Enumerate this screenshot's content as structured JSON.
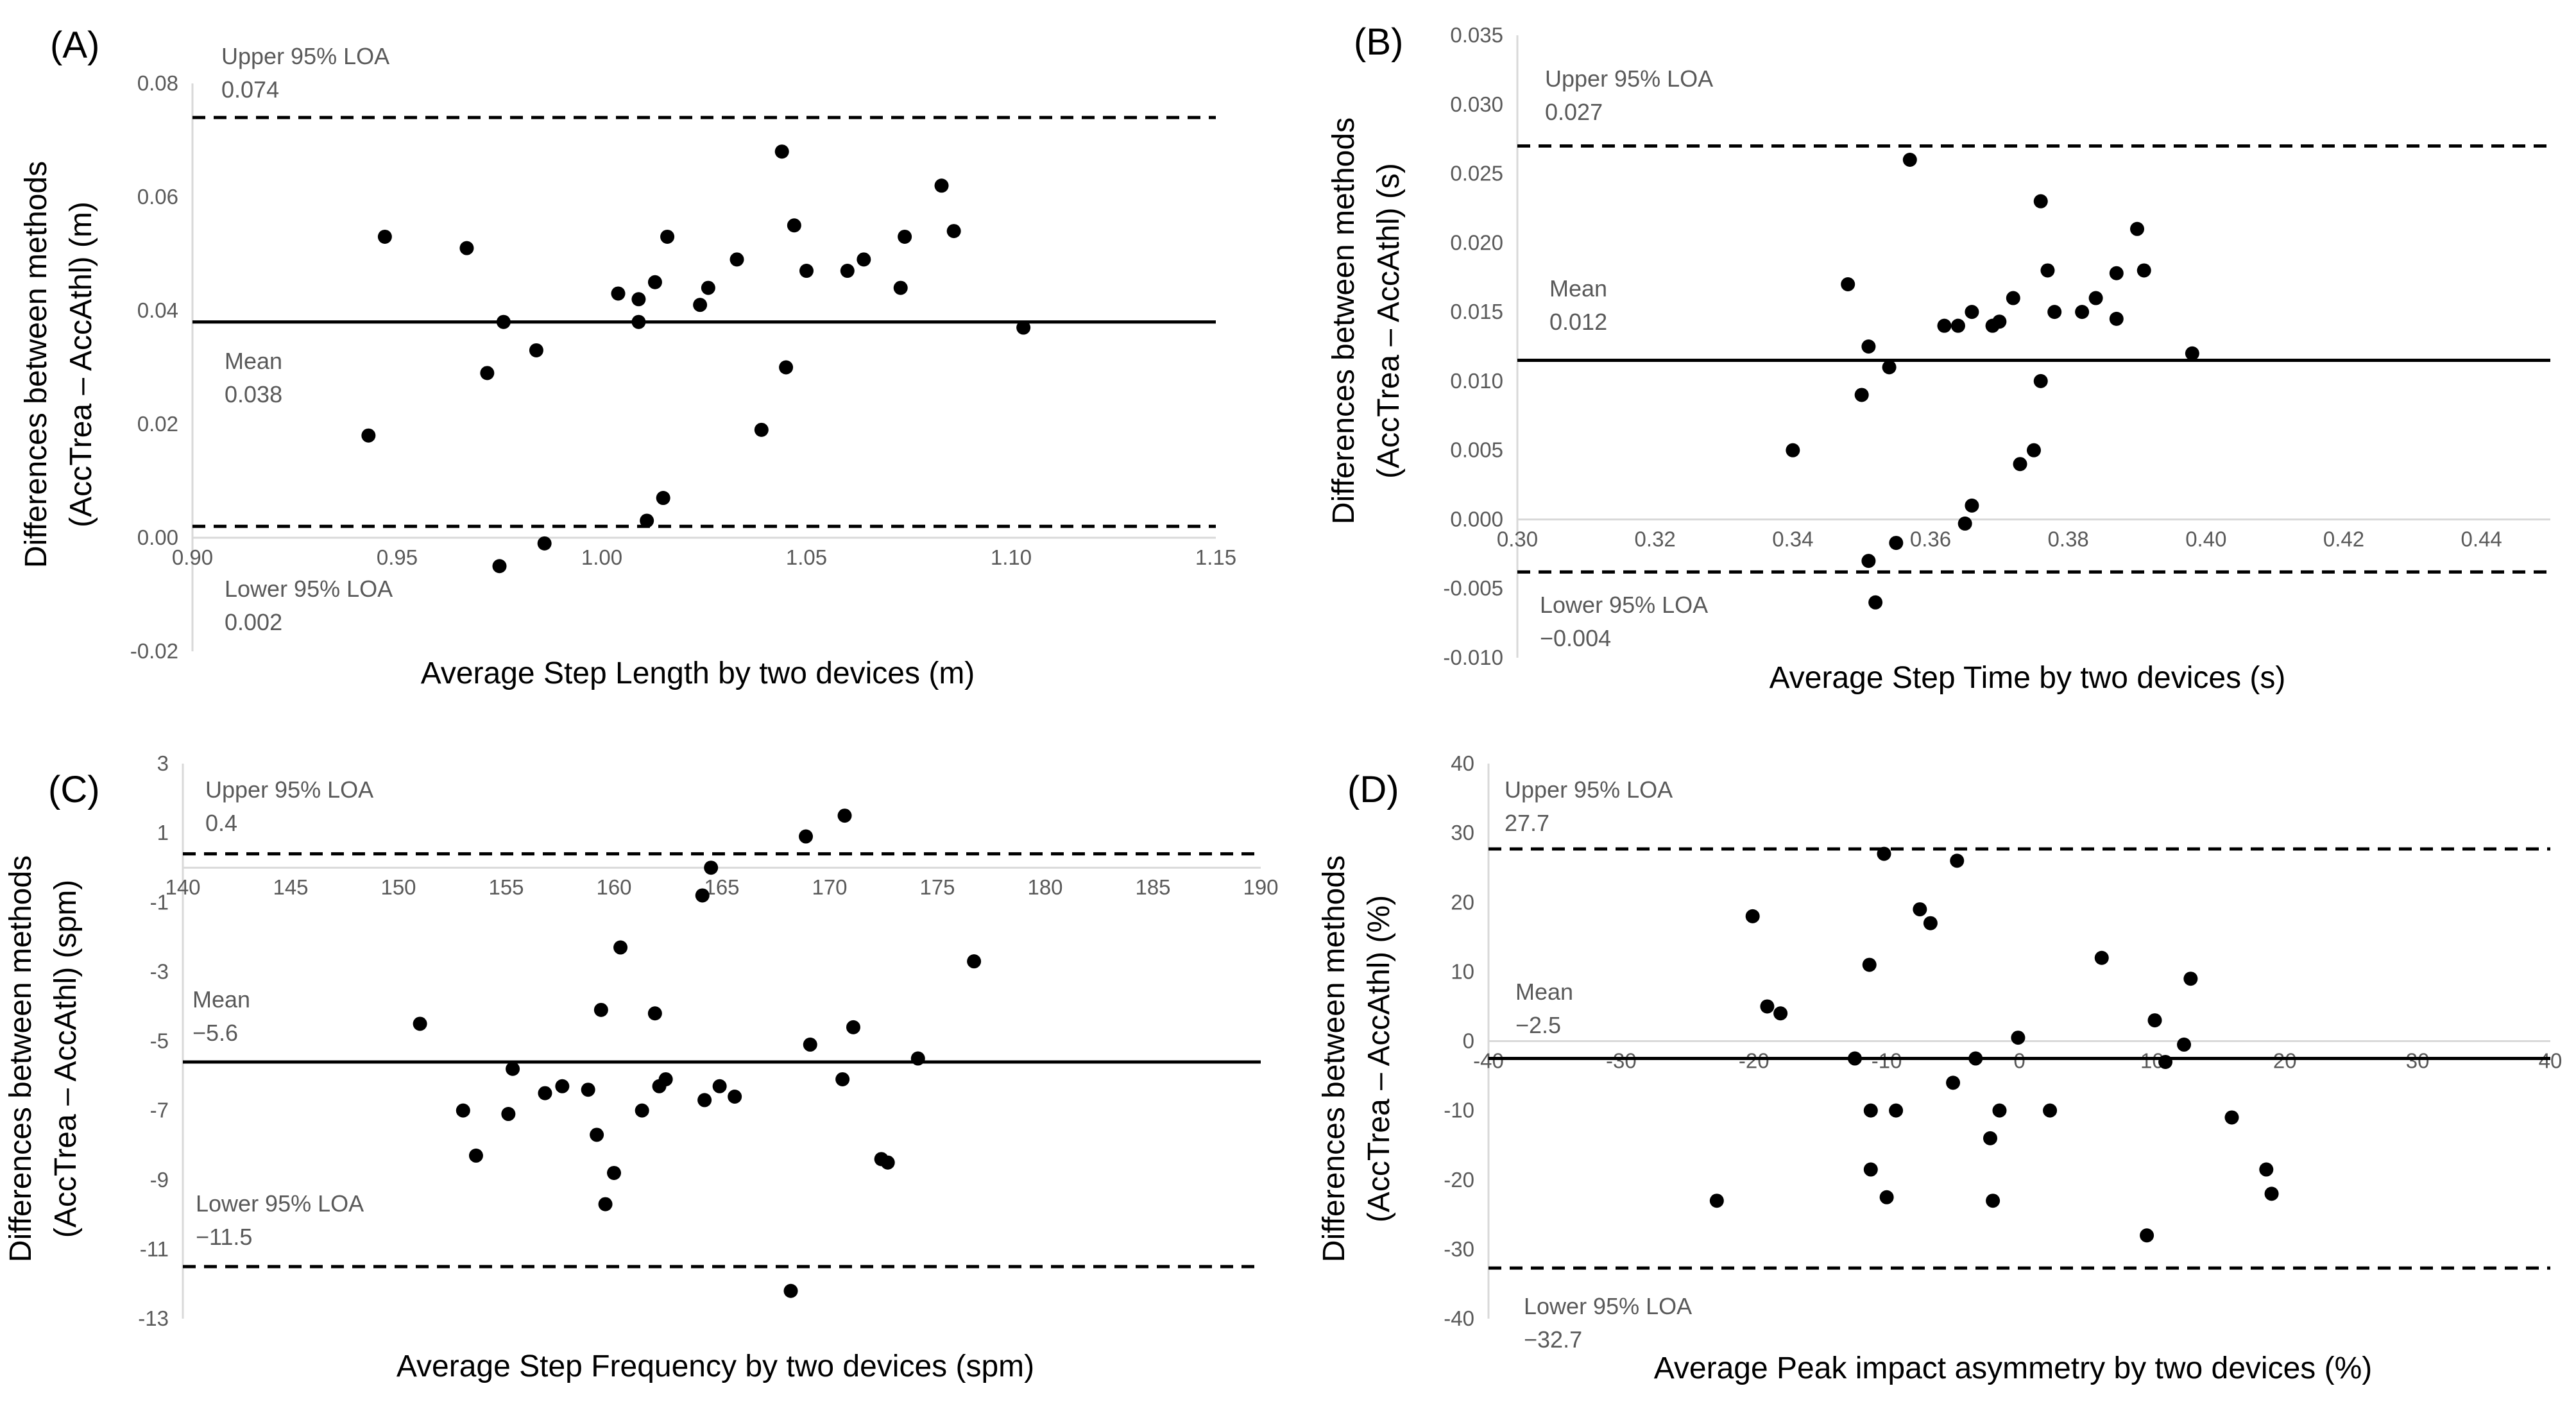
{
  "chart_data": [
    {
      "type": "scatter",
      "panel_label": "(A)",
      "title": "",
      "xlabel": "Average Step Length by two devices (m)",
      "ylabel_line1": "Differences between methods",
      "ylabel_line2": "(AccTrea – AccAthl) (m)",
      "xlim": [
        0.9,
        1.15
      ],
      "ylim": [
        -0.02,
        0.08
      ],
      "xticks": [
        "0.90",
        "0.95",
        "1.00",
        "1.05",
        "1.10",
        "1.15"
      ],
      "yticks": [
        "-0.02",
        "0.00",
        "0.02",
        "0.04",
        "0.06",
        "0.08"
      ],
      "lines": {
        "upper": {
          "label": "Upper 95% LOA",
          "value_text": "0.074",
          "value": 0.074
        },
        "mean": {
          "label": "Mean",
          "value_text": "0.038",
          "value": 0.038
        },
        "lower": {
          "label": "Lower 95% LOA",
          "value_text": "0.002",
          "value": 0.002
        }
      },
      "points": [
        [
          0.943,
          0.018
        ],
        [
          0.947,
          0.053
        ],
        [
          0.967,
          0.051
        ],
        [
          0.972,
          0.029
        ],
        [
          0.975,
          -0.005
        ],
        [
          0.976,
          0.038
        ],
        [
          0.984,
          0.033
        ],
        [
          0.986,
          -0.001
        ],
        [
          1.004,
          0.043
        ],
        [
          1.009,
          0.038
        ],
        [
          1.009,
          0.042
        ],
        [
          1.011,
          0.003
        ],
        [
          1.013,
          0.045
        ],
        [
          1.015,
          0.007
        ],
        [
          1.016,
          0.053
        ],
        [
          1.024,
          0.041
        ],
        [
          1.026,
          0.044
        ],
        [
          1.033,
          0.049
        ],
        [
          1.039,
          0.019
        ],
        [
          1.044,
          0.068
        ],
        [
          1.045,
          0.03
        ],
        [
          1.047,
          0.055
        ],
        [
          1.05,
          0.047
        ],
        [
          1.06,
          0.047
        ],
        [
          1.064,
          0.049
        ],
        [
          1.073,
          0.044
        ],
        [
          1.074,
          0.053
        ],
        [
          1.083,
          0.062
        ],
        [
          1.086,
          0.054
        ],
        [
          1.103,
          0.037
        ]
      ]
    },
    {
      "type": "scatter",
      "panel_label": "(B)",
      "title": "",
      "xlabel": "Average Step Time by two devices (s)",
      "ylabel_line1": "Differences between methods",
      "ylabel_line2": "(AccTrea – AccAthl) (s)",
      "xlim": [
        0.3,
        0.45
      ],
      "ylim": [
        -0.01,
        0.035
      ],
      "xticks": [
        "0.30",
        "0.32",
        "0.34",
        "0.36",
        "0.38",
        "0.40",
        "0.42",
        "0.44"
      ],
      "yticks": [
        "-0.010",
        "-0.005",
        "0.000",
        "0.005",
        "0.010",
        "0.015",
        "0.020",
        "0.025",
        "0.030",
        "0.035"
      ],
      "lines": {
        "upper": {
          "label": "Upper 95% LOA",
          "value_text": "0.027",
          "value": 0.027
        },
        "mean": {
          "label": "Mean",
          "value_text": "0.012",
          "value": 0.0115
        },
        "lower": {
          "label": "Lower 95% LOA",
          "value_text": "−0.004",
          "value": -0.0038
        }
      },
      "points": [
        [
          0.34,
          0.005
        ],
        [
          0.348,
          0.017
        ],
        [
          0.35,
          0.009
        ],
        [
          0.351,
          0.0125
        ],
        [
          0.351,
          -0.003
        ],
        [
          0.352,
          -0.006
        ],
        [
          0.354,
          0.011
        ],
        [
          0.355,
          -0.0017
        ],
        [
          0.357,
          0.026
        ],
        [
          0.362,
          0.014
        ],
        [
          0.364,
          0.014
        ],
        [
          0.365,
          -0.0003
        ],
        [
          0.366,
          0.015
        ],
        [
          0.366,
          0.001
        ],
        [
          0.369,
          0.014
        ],
        [
          0.37,
          0.0143
        ],
        [
          0.372,
          0.016
        ],
        [
          0.373,
          0.004
        ],
        [
          0.375,
          0.005
        ],
        [
          0.376,
          0.023
        ],
        [
          0.376,
          0.01
        ],
        [
          0.377,
          0.018
        ],
        [
          0.378,
          0.015
        ],
        [
          0.382,
          0.015
        ],
        [
          0.384,
          0.016
        ],
        [
          0.387,
          0.0178
        ],
        [
          0.387,
          0.0145
        ],
        [
          0.39,
          0.021
        ],
        [
          0.391,
          0.018
        ],
        [
          0.398,
          0.012
        ]
      ]
    },
    {
      "type": "scatter",
      "panel_label": "(C)",
      "title": "",
      "xlabel": "Average Step Frequency by two devices (spm)",
      "ylabel_line1": "Differences between methods",
      "ylabel_line2": "(AccTrea – AccAthl) (spm)",
      "xlim": [
        140,
        190
      ],
      "ylim": [
        -13,
        3
      ],
      "xticks": [
        "140",
        "145",
        "150",
        "155",
        "160",
        "165",
        "170",
        "175",
        "180",
        "185",
        "190"
      ],
      "yticks": [
        "-13",
        "-11",
        "-9",
        "-7",
        "-5",
        "-3",
        "-1",
        "1",
        "3"
      ],
      "lines": {
        "upper": {
          "label": "Upper 95% LOA",
          "value_text": "0.4",
          "value": 0.4
        },
        "mean": {
          "label": "Mean",
          "value_text": "−5.6",
          "value": -5.6
        },
        "lower": {
          "label": "Lower 95% LOA",
          "value_text": "−11.5",
          "value": -11.5
        }
      },
      "points": [
        [
          151,
          -4.5
        ],
        [
          153,
          -7.0
        ],
        [
          153.6,
          -8.3
        ],
        [
          155.1,
          -7.1
        ],
        [
          155.3,
          -5.8
        ],
        [
          156.8,
          -6.5
        ],
        [
          157.6,
          -6.3
        ],
        [
          158.8,
          -6.4
        ],
        [
          159.2,
          -7.7
        ],
        [
          159.4,
          -4.1
        ],
        [
          159.6,
          -9.7
        ],
        [
          160.0,
          -8.8
        ],
        [
          160.3,
          -2.3
        ],
        [
          161.3,
          -7.0
        ],
        [
          161.9,
          -4.2
        ],
        [
          162.1,
          -6.3
        ],
        [
          162.4,
          -6.1
        ],
        [
          164.1,
          -0.8
        ],
        [
          164.2,
          -6.7
        ],
        [
          164.5,
          0.0
        ],
        [
          164.9,
          -6.3
        ],
        [
          165.6,
          -6.6
        ],
        [
          168.2,
          -12.2
        ],
        [
          168.9,
          0.9
        ],
        [
          169.1,
          -5.1
        ],
        [
          170.6,
          -6.1
        ],
        [
          170.7,
          1.5
        ],
        [
          171.1,
          -4.6
        ],
        [
          172.4,
          -8.4
        ],
        [
          172.7,
          -8.5
        ],
        [
          174.1,
          -5.5
        ],
        [
          176.7,
          -2.7
        ]
      ]
    },
    {
      "type": "scatter",
      "panel_label": "(D)",
      "title": "",
      "xlabel": "Average Peak impact asymmetry by two devices (%)",
      "ylabel_line1": "Differences between methods",
      "ylabel_line2": "(AccTrea – AccAthl) (%)",
      "xlim": [
        -40,
        40
      ],
      "ylim": [
        -40,
        40
      ],
      "xticks": [
        "-40",
        "-30",
        "-20",
        "-10",
        "0",
        "10",
        "20",
        "30",
        "40"
      ],
      "yticks": [
        "-40",
        "-30",
        "-20",
        "-10",
        "0",
        "10",
        "20",
        "30",
        "40"
      ],
      "lines": {
        "upper": {
          "label": "Upper 95% LOA",
          "value_text": "27.7",
          "value": 27.7
        },
        "mean": {
          "label": "Mean",
          "value_text": "−2.5",
          "value": -2.5
        },
        "lower": {
          "label": "Lower 95% LOA",
          "value_text": "−32.7",
          "value": -32.7
        }
      },
      "points": [
        [
          -22.8,
          -23
        ],
        [
          -20.1,
          18
        ],
        [
          -19.0,
          5
        ],
        [
          -18.0,
          4
        ],
        [
          -11.3,
          11
        ],
        [
          -11.2,
          -10
        ],
        [
          -11.2,
          -18.5
        ],
        [
          -10.2,
          27
        ],
        [
          -10.0,
          -22.5
        ],
        [
          -9.3,
          -10
        ],
        [
          -12.4,
          -2.5
        ],
        [
          -7.5,
          19
        ],
        [
          -6.7,
          17
        ],
        [
          -5.0,
          -6
        ],
        [
          -4.7,
          26
        ],
        [
          -3.3,
          -2.5
        ],
        [
          -2.2,
          -14
        ],
        [
          -2.0,
          -23
        ],
        [
          -1.5,
          -10
        ],
        [
          -0.1,
          0.5
        ],
        [
          2.3,
          -10
        ],
        [
          6.2,
          12
        ],
        [
          9.6,
          -28
        ],
        [
          10.2,
          3
        ],
        [
          11.0,
          -3
        ],
        [
          12.4,
          -0.5
        ],
        [
          12.9,
          9
        ],
        [
          16.0,
          -11
        ],
        [
          18.6,
          -18.5
        ],
        [
          19.0,
          -22
        ]
      ]
    }
  ]
}
